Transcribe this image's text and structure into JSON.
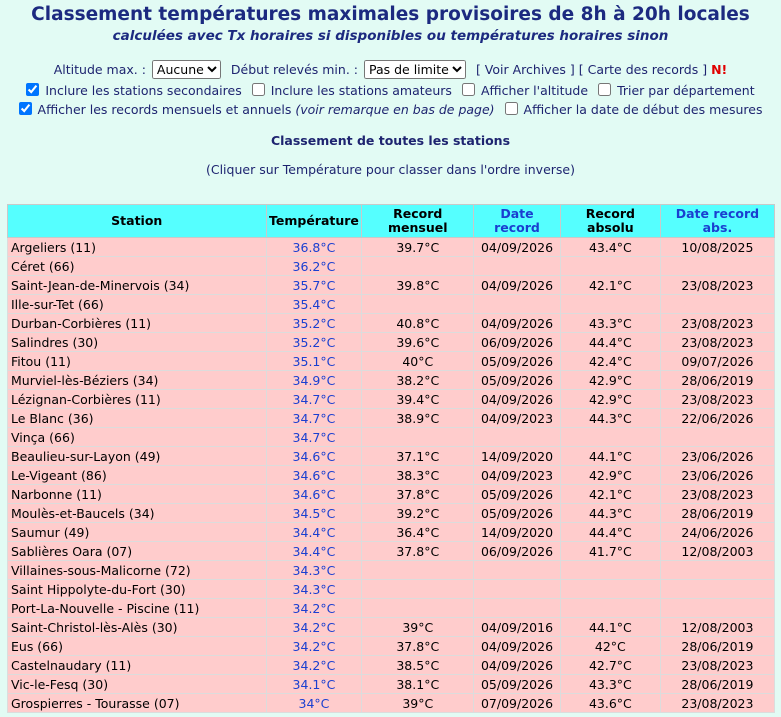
{
  "header": {
    "title": "Classement températures maximales provisoires de 8h à 20h locales",
    "subtitle": "calculées avec Tx horaires si disponibles ou températures horaires sinon"
  },
  "controls": {
    "altitude_label": "Altitude max. :",
    "altitude_value": "Aucune",
    "start_label": "Début relevés min. :",
    "start_value": "Pas de limite",
    "archives_link": "[ Voir Archives ]",
    "map_link": "[ Carte des records ]",
    "new_badge": "N!"
  },
  "options": [
    {
      "label": "Inclure les stations secondaires",
      "checked": true
    },
    {
      "label": "Inclure les stations amateurs",
      "checked": false
    },
    {
      "label": "Afficher l'altitude",
      "checked": false
    },
    {
      "label": "Trier par département",
      "checked": false
    },
    {
      "label": "Afficher les records mensuels et annuels",
      "note": "(voir remarque en bas de page)",
      "checked": true
    },
    {
      "label": "Afficher la date de début des mesures",
      "checked": false
    }
  ],
  "table": {
    "heading": "Classement de toutes les stations",
    "hint": "(Cliquer sur Température pour classer dans l'ordre inverse)",
    "columns": [
      "Station",
      "Température",
      "Record mensuel",
      "Date record",
      "Record absolu",
      "Date record abs."
    ],
    "rows": [
      [
        "Argeliers (11)",
        "36.8°C",
        "39.7°C",
        "04/09/2026",
        "43.4°C",
        "10/08/2025"
      ],
      [
        "Céret (66)",
        "36.2°C",
        null,
        null,
        null,
        null
      ],
      [
        "Saint-Jean-de-Minervois (34)",
        "35.7°C",
        "39.8°C",
        "04/09/2026",
        "42.1°C",
        "23/08/2023"
      ],
      [
        "Ille-sur-Tet (66)",
        "35.4°C",
        null,
        null,
        null,
        null
      ],
      [
        "Durban-Corbières (11)",
        "35.2°C",
        "40.8°C",
        "04/09/2026",
        "43.3°C",
        "23/08/2023"
      ],
      [
        "Salindres (30)",
        "35.2°C",
        "39.6°C",
        "06/09/2026",
        "44.4°C",
        "23/08/2023"
      ],
      [
        "Fitou (11)",
        "35.1°C",
        "40°C",
        "05/09/2026",
        "42.4°C",
        "09/07/2026"
      ],
      [
        "Murviel-lès-Béziers (34)",
        "34.9°C",
        "38.2°C",
        "05/09/2026",
        "42.9°C",
        "28/06/2019"
      ],
      [
        "Lézignan-Corbières (11)",
        "34.7°C",
        "39.4°C",
        "04/09/2026",
        "42.9°C",
        "23/08/2023"
      ],
      [
        "Le Blanc (36)",
        "34.7°C",
        "38.9°C",
        "04/09/2023",
        "44.3°C",
        "22/06/2026"
      ],
      [
        "Vinça (66)",
        "34.7°C",
        null,
        null,
        null,
        null
      ],
      [
        "Beaulieu-sur-Layon (49)",
        "34.6°C",
        "37.1°C",
        "14/09/2020",
        "44.1°C",
        "23/06/2026"
      ],
      [
        "Le-Vigeant (86)",
        "34.6°C",
        "38.3°C",
        "04/09/2023",
        "42.9°C",
        "23/06/2026"
      ],
      [
        "Narbonne (11)",
        "34.6°C",
        "37.8°C",
        "05/09/2026",
        "42.1°C",
        "23/08/2023"
      ],
      [
        "Moulès-et-Baucels (34)",
        "34.5°C",
        "39.2°C",
        "05/09/2026",
        "44.3°C",
        "28/06/2019"
      ],
      [
        "Saumur (49)",
        "34.4°C",
        "36.4°C",
        "14/09/2020",
        "44.4°C",
        "24/06/2026"
      ],
      [
        "Sablières Oara (07)",
        "34.4°C",
        "37.8°C",
        "06/09/2026",
        "41.7°C",
        "12/08/2003"
      ],
      [
        "Villaines-sous-Malicorne (72)",
        "34.3°C",
        null,
        null,
        null,
        null
      ],
      [
        "Saint Hippolyte-du-Fort (30)",
        "34.3°C",
        null,
        null,
        null,
        null
      ],
      [
        "Port-La-Nouvelle - Piscine (11)",
        "34.2°C",
        null,
        null,
        null,
        null
      ],
      [
        "Saint-Christol-lès-Alès (30)",
        "34.2°C",
        "39°C",
        "04/09/2016",
        "44.1°C",
        "12/08/2003"
      ],
      [
        "Eus (66)",
        "34.2°C",
        "37.8°C",
        "04/09/2026",
        "42°C",
        "28/06/2019"
      ],
      [
        "Castelnaudary (11)",
        "34.2°C",
        "38.5°C",
        "04/09/2026",
        "42.7°C",
        "23/08/2023"
      ],
      [
        "Vic-le-Fesq (30)",
        "34.1°C",
        "38.1°C",
        "05/09/2026",
        "43.3°C",
        "28/06/2019"
      ],
      [
        "Grospierres - Tourasse (07)",
        "34°C",
        "39°C",
        "07/09/2026",
        "43.6°C",
        "23/08/2023"
      ]
    ]
  }
}
